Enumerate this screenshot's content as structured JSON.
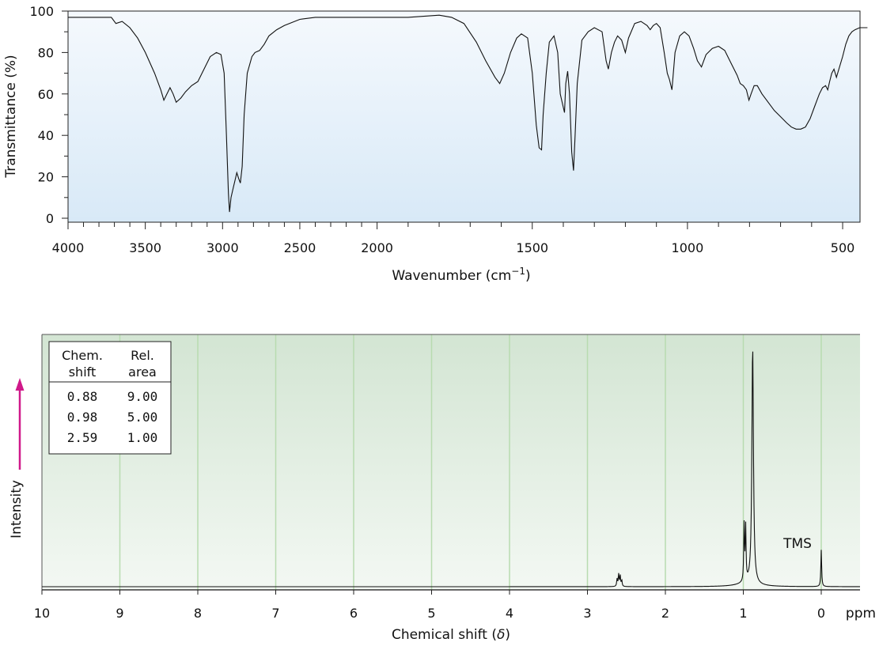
{
  "colors": {
    "ir_bg_top": "#f5f9fd",
    "ir_bg_bottom": "#d8e9f7",
    "nmr_bg_top": "#d3e5d3",
    "nmr_bg_bottom": "#f3f8f3",
    "grid": "#b8dbb0",
    "accent": "#d0198a"
  },
  "chart_data": [
    {
      "type": "line",
      "ylabel": "Transmittance (%)",
      "xlabel": "Wavenumber (cm",
      "xlabel_sup": "−1",
      "xlabel_close": ")",
      "xlim": [
        4000,
        420
      ],
      "ylim": [
        0,
        100
      ],
      "x_ticks": [
        "4000",
        "3500",
        "3000",
        "2500",
        "2000",
        "1500",
        "1000",
        "500"
      ],
      "y_ticks": [
        "0",
        "20",
        "40",
        "60",
        "80",
        "100"
      ],
      "series": [
        {
          "points": [
            [
              4000,
              97
            ],
            [
              3950,
              97
            ],
            [
              3800,
              97
            ],
            [
              3720,
              97
            ],
            [
              3690,
              94
            ],
            [
              3650,
              95
            ],
            [
              3600,
              92
            ],
            [
              3550,
              87
            ],
            [
              3500,
              80
            ],
            [
              3440,
              70
            ],
            [
              3400,
              62
            ],
            [
              3380,
              57
            ],
            [
              3360,
              60
            ],
            [
              3340,
              63
            ],
            [
              3320,
              60
            ],
            [
              3300,
              56
            ],
            [
              3270,
              58
            ],
            [
              3240,
              61
            ],
            [
              3200,
              64
            ],
            [
              3160,
              66
            ],
            [
              3120,
              72
            ],
            [
              3080,
              78
            ],
            [
              3040,
              80
            ],
            [
              3010,
              79
            ],
            [
              2990,
              70
            ],
            [
              2975,
              40
            ],
            [
              2962,
              12
            ],
            [
              2955,
              3
            ],
            [
              2945,
              10
            ],
            [
              2930,
              15
            ],
            [
              2920,
              18
            ],
            [
              2908,
              22
            ],
            [
              2895,
              19
            ],
            [
              2885,
              17
            ],
            [
              2873,
              25
            ],
            [
              2860,
              50
            ],
            [
              2840,
              70
            ],
            [
              2810,
              78
            ],
            [
              2790,
              80
            ],
            [
              2760,
              81
            ],
            [
              2730,
              84
            ],
            [
              2700,
              88
            ],
            [
              2650,
              91
            ],
            [
              2600,
              93
            ],
            [
              2500,
              96
            ],
            [
              2400,
              97
            ],
            [
              2300,
              97
            ],
            [
              2200,
              97
            ],
            [
              2100,
              97
            ],
            [
              2000,
              97
            ],
            [
              1900,
              97
            ],
            [
              1800,
              98
            ],
            [
              1760,
              97
            ],
            [
              1720,
              94
            ],
            [
              1680,
              85
            ],
            [
              1650,
              76
            ],
            [
              1620,
              68
            ],
            [
              1605,
              65
            ],
            [
              1590,
              70
            ],
            [
              1570,
              80
            ],
            [
              1550,
              87
            ],
            [
              1535,
              89
            ],
            [
              1515,
              87
            ],
            [
              1500,
              70
            ],
            [
              1487,
              45
            ],
            [
              1478,
              34
            ],
            [
              1470,
              33
            ],
            [
              1465,
              50
            ],
            [
              1455,
              70
            ],
            [
              1445,
              85
            ],
            [
              1430,
              88
            ],
            [
              1418,
              80
            ],
            [
              1410,
              60
            ],
            [
              1396,
              51
            ],
            [
              1392,
              65
            ],
            [
              1386,
              71
            ],
            [
              1380,
              60
            ],
            [
              1373,
              32
            ],
            [
              1367,
              23
            ],
            [
              1362,
              40
            ],
            [
              1355,
              65
            ],
            [
              1340,
              86
            ],
            [
              1320,
              90
            ],
            [
              1300,
              92
            ],
            [
              1275,
              90
            ],
            [
              1262,
              76
            ],
            [
              1255,
              72
            ],
            [
              1245,
              80
            ],
            [
              1235,
              85
            ],
            [
              1225,
              88
            ],
            [
              1212,
              86
            ],
            [
              1200,
              80
            ],
            [
              1190,
              87
            ],
            [
              1170,
              94
            ],
            [
              1150,
              95
            ],
            [
              1130,
              93
            ],
            [
              1120,
              91
            ],
            [
              1110,
              93
            ],
            [
              1100,
              94
            ],
            [
              1088,
              92
            ],
            [
              1075,
              80
            ],
            [
              1065,
              70
            ],
            [
              1058,
              67
            ],
            [
              1050,
              62
            ],
            [
              1040,
              80
            ],
            [
              1025,
              88
            ],
            [
              1010,
              90
            ],
            [
              995,
              88
            ],
            [
              980,
              82
            ],
            [
              968,
              76
            ],
            [
              955,
              73
            ],
            [
              940,
              79
            ],
            [
              920,
              82
            ],
            [
              900,
              83
            ],
            [
              880,
              81
            ],
            [
              860,
              75
            ],
            [
              840,
              69
            ],
            [
              830,
              65
            ],
            [
              820,
              64
            ],
            [
              810,
              62
            ],
            [
              802,
              57
            ],
            [
              795,
              60
            ],
            [
              785,
              64
            ],
            [
              775,
              64
            ],
            [
              760,
              60
            ],
            [
              740,
              56
            ],
            [
              720,
              52
            ],
            [
              700,
              49
            ],
            [
              680,
              46
            ],
            [
              665,
              44
            ],
            [
              650,
              43
            ],
            [
              635,
              43
            ],
            [
              620,
              44
            ],
            [
              605,
              48
            ],
            [
              590,
              54
            ],
            [
              575,
              60
            ],
            [
              565,
              63
            ],
            [
              555,
              64
            ],
            [
              548,
              62
            ],
            [
              542,
              66
            ],
            [
              535,
              70
            ],
            [
              528,
              72
            ],
            [
              520,
              68
            ],
            [
              512,
              72
            ],
            [
              500,
              78
            ],
            [
              490,
              84
            ],
            [
              480,
              88
            ],
            [
              470,
              90
            ],
            [
              460,
              91
            ],
            [
              445,
              92
            ],
            [
              430,
              92
            ],
            [
              420,
              92
            ]
          ]
        }
      ]
    },
    {
      "type": "line",
      "ylabel": "Intensity",
      "xlabel": "Chemical shift (",
      "xlabel_delta": "δ",
      "xlabel_close": ")",
      "unit_label": "ppm",
      "xlim": [
        10,
        -0.5
      ],
      "x_ticks": [
        "10",
        "9",
        "8",
        "7",
        "6",
        "5",
        "4",
        "3",
        "2",
        "1",
        "0"
      ],
      "annotation": "TMS",
      "table": {
        "header": [
          [
            "Chem.",
            "shift"
          ],
          [
            "Rel.",
            "area"
          ]
        ],
        "rows": [
          [
            "0.88",
            "9.00"
          ],
          [
            "0.98",
            "5.00"
          ],
          [
            "2.59",
            "1.00"
          ]
        ]
      },
      "peaks": [
        {
          "shift": 0.88,
          "height": 0.97,
          "width": 0.012
        },
        {
          "shift": 0.97,
          "height": 0.22,
          "width": 0.006
        },
        {
          "shift": 0.99,
          "height": 0.23,
          "width": 0.006
        },
        {
          "shift": 2.56,
          "height": 0.025,
          "width": 0.006
        },
        {
          "shift": 2.58,
          "height": 0.045,
          "width": 0.006
        },
        {
          "shift": 2.6,
          "height": 0.05,
          "width": 0.006
        },
        {
          "shift": 2.62,
          "height": 0.03,
          "width": 0.006
        },
        {
          "shift": 0.0,
          "height": 0.15,
          "width": 0.006
        }
      ]
    }
  ]
}
